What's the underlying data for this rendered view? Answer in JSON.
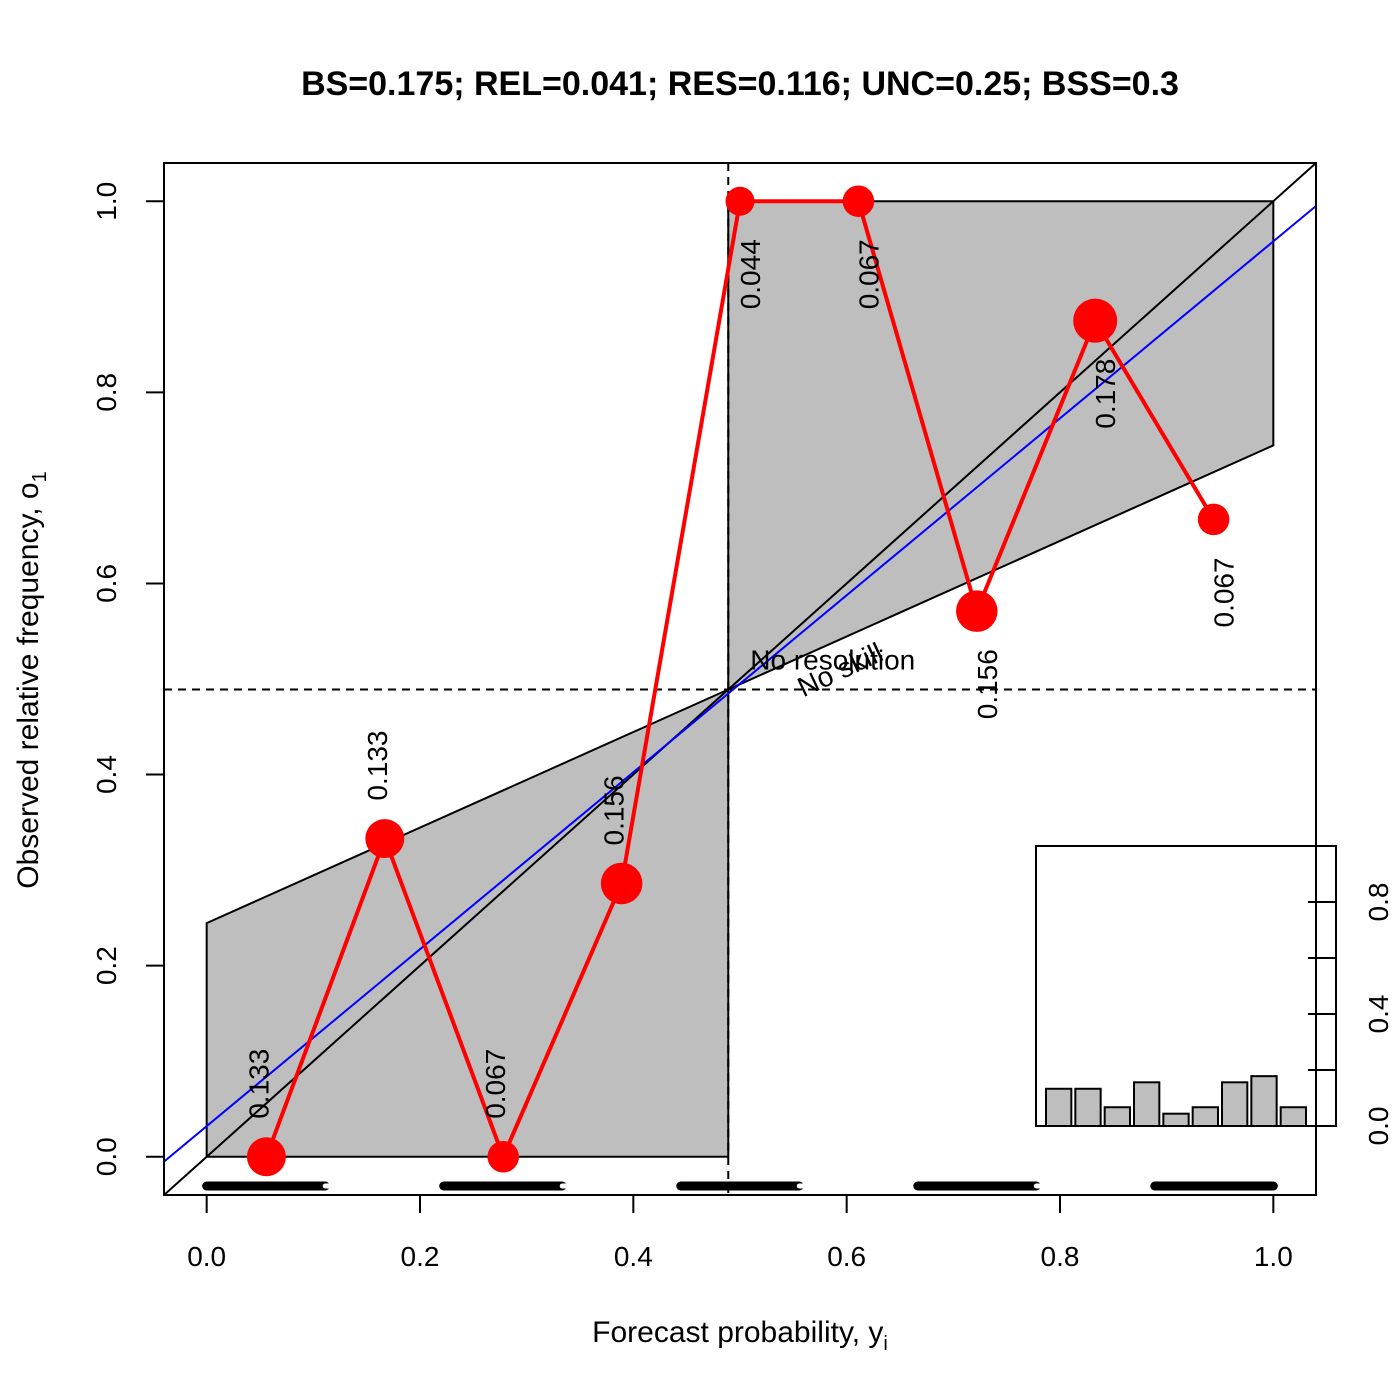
{
  "chart_data": {
    "type": "scatter",
    "title": "BS=0.175; REL=0.041; RES=0.116; UNC=0.25; BSS=0.3",
    "xlabel": "Forecast probability, y",
    "xlabel_sub": "i",
    "ylabel": "Observed relative frequency, o",
    "ylabel_sub": "1",
    "xlim": [
      -0.04,
      1.04
    ],
    "ylim": [
      -0.04,
      1.04
    ],
    "x_ticks": [
      0.0,
      0.2,
      0.4,
      0.6,
      0.8,
      1.0
    ],
    "x_tick_labels": [
      "0.0",
      "0.2",
      "0.4",
      "0.6",
      "0.8",
      "1.0"
    ],
    "y_ticks": [
      0.0,
      0.2,
      0.4,
      0.6,
      0.8,
      1.0
    ],
    "y_tick_labels": [
      "0.0",
      "0.2",
      "0.4",
      "0.6",
      "0.8",
      "1.0"
    ],
    "climatology": 0.489,
    "series": [
      {
        "name": "reliability",
        "x": [
          0.056,
          0.167,
          0.278,
          0.389,
          0.5,
          0.611,
          0.722,
          0.833,
          0.944
        ],
        "y": [
          0.0,
          0.333,
          0.0,
          0.286,
          1.0,
          1.0,
          0.571,
          0.875,
          0.667
        ],
        "freq": [
          0.133,
          0.133,
          0.067,
          0.156,
          0.044,
          0.067,
          0.156,
          0.178,
          0.067
        ],
        "freq_labels": [
          "0.133",
          "0.133",
          "0.067",
          "0.156",
          "0.044",
          "0.067",
          "0.156",
          "0.178",
          "0.067"
        ]
      }
    ],
    "regression_line": {
      "intercept": 0.032,
      "slope": 0.926
    },
    "annotations": {
      "no_resolution": "No resolution",
      "no_skill": "No skill"
    },
    "inset_histogram": {
      "values": [
        0.133,
        0.133,
        0.067,
        0.156,
        0.044,
        0.067,
        0.156,
        0.178,
        0.067
      ],
      "ylim": [
        0,
        1.0
      ],
      "tick_values": [
        0.0,
        0.2,
        0.4,
        0.6,
        0.8
      ],
      "tick_labels": [
        "0.0",
        "0.4",
        "0.8"
      ]
    },
    "colors": {
      "points": "#ff0000",
      "regression": "#0000ff",
      "skill_region": "#bebebe",
      "lines": "#000000"
    }
  }
}
